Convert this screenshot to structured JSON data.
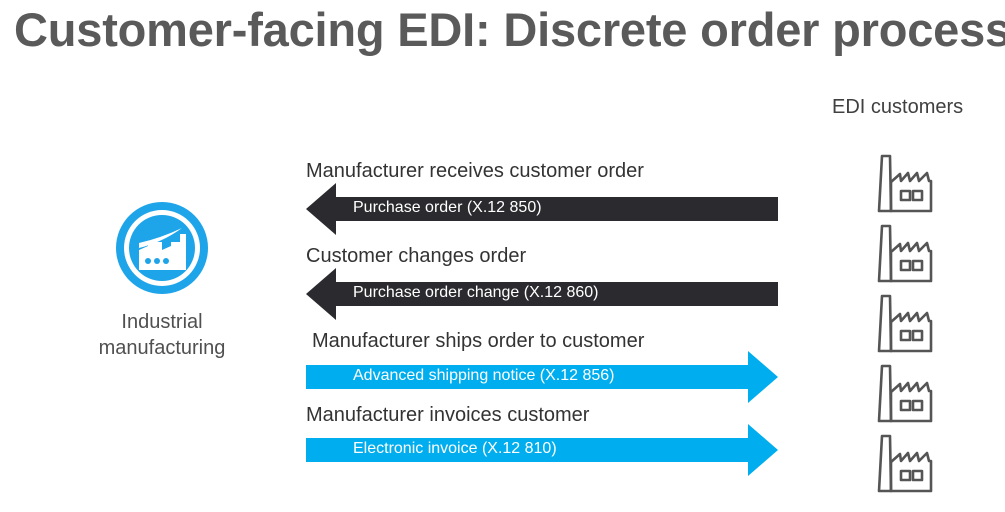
{
  "title": "Customer-facing EDI: Discrete order process",
  "customers_label": "EDI customers",
  "manufacturer": {
    "label_line1": "Industrial",
    "label_line2": "manufacturing",
    "icon": "factory-icon",
    "color": "#1ea4e9"
  },
  "flows": [
    {
      "heading": "Manufacturer receives customer order",
      "label": "Purchase order (X.12 850)",
      "direction": "to-manufacturer",
      "color": "#2b2b2f"
    },
    {
      "heading": "Customer changes order",
      "label": "Purchase order change (X.12 860)",
      "direction": "to-manufacturer",
      "color": "#2b2b2f"
    },
    {
      "heading": "Manufacturer ships order to customer",
      "label": "Advanced shipping notice (X.12 856)",
      "direction": "to-customer",
      "color": "#00aeef"
    },
    {
      "heading": "Manufacturer invoices customer",
      "label": "Electronic invoice (X.12 810)",
      "direction": "to-customer",
      "color": "#00aeef"
    }
  ],
  "customer_icons": [
    "factory-outline-icon",
    "factory-outline-icon",
    "factory-outline-icon",
    "factory-outline-icon",
    "factory-outline-icon"
  ],
  "customer_icon_color": "#555555"
}
